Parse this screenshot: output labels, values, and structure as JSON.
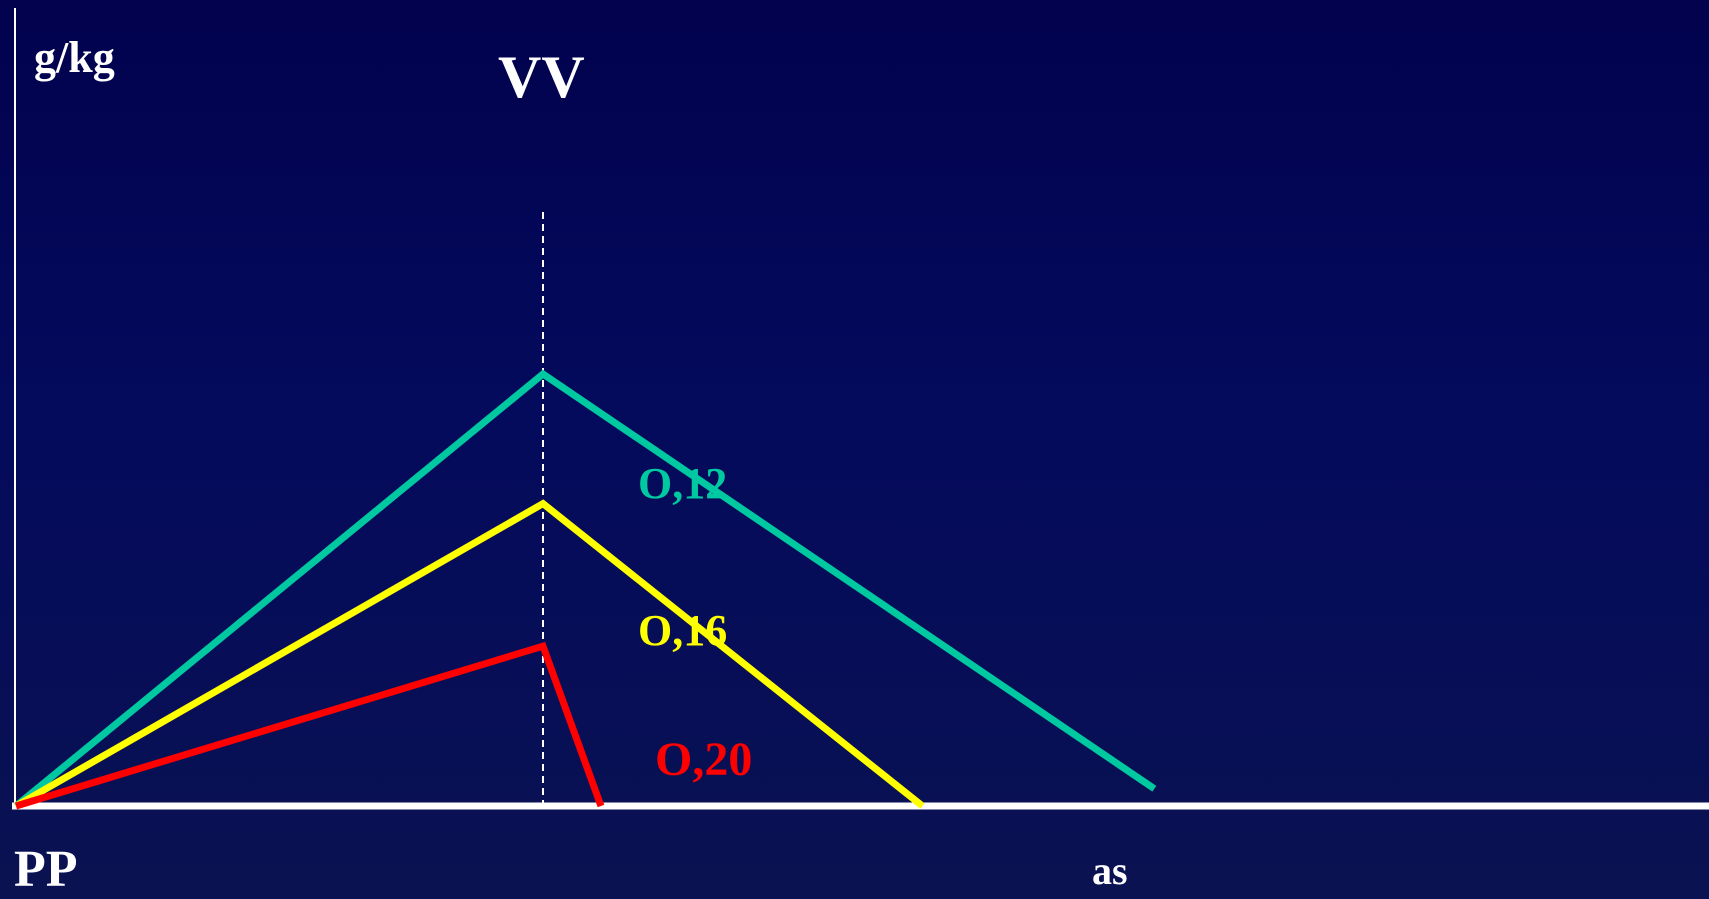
{
  "colors": {
    "background": "#05085a",
    "axis": "#ffffff",
    "peak_marker": "#ffffff"
  },
  "chart_data": {
    "type": "line",
    "y_unit_label": "g/kg",
    "peak_label": "VV",
    "origin_label": "PP",
    "x_label": "as",
    "grid": false,
    "series": [
      {
        "name": "O,12",
        "color": "#00c8a0",
        "points": [
          [
            0,
            0
          ],
          [
            1,
            1.0
          ],
          [
            2.16,
            0.04
          ]
        ]
      },
      {
        "name": "O,16",
        "color": "#ffff00",
        "points": [
          [
            0,
            0
          ],
          [
            1,
            0.7
          ],
          [
            1.72,
            0
          ]
        ]
      },
      {
        "name": "O,20",
        "color": "#ff0000",
        "points": [
          [
            0,
            0
          ],
          [
            1,
            0.37
          ],
          [
            1.11,
            0
          ]
        ]
      }
    ]
  }
}
